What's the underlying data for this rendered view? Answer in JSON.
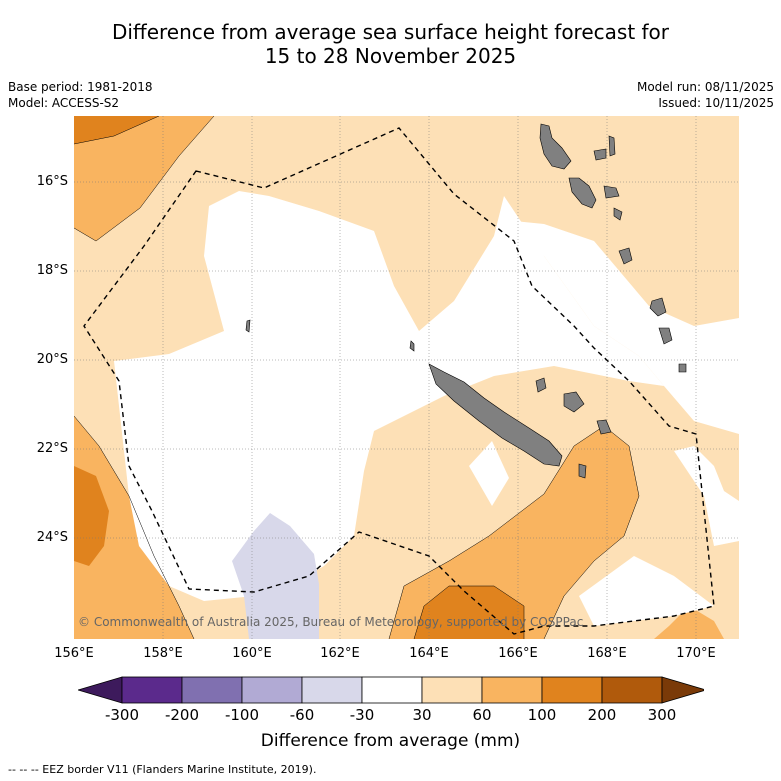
{
  "title": {
    "line1": "Difference from average sea surface height forecast for",
    "line2": "15 to 28 November 2025"
  },
  "base_period": "Base period: 1981-2018",
  "model": "Model: ACCESS-S2",
  "model_run": "Model run: 08/11/2025",
  "issued": "Issued: 10/11/2025",
  "lat_labels": [
    "16°S",
    "18°S",
    "20°S",
    "22°S",
    "24°S"
  ],
  "lon_labels": [
    "156°E",
    "158°E",
    "160°E",
    "162°E",
    "164°E",
    "166°E",
    "168°E",
    "170°E"
  ],
  "copyright": "© Commonwealth of Australia 2025, Bureau of Meteorology, supported by COSPPac",
  "colorbar": {
    "ticks": [
      "-300",
      "-200",
      "-100",
      "-60",
      "-30",
      "30",
      "60",
      "100",
      "200",
      "300"
    ],
    "colors": [
      "#3d1a5c",
      "#5b2a8c",
      "#8070b0",
      "#b1aad4",
      "#d8d8ea",
      "#ffffff",
      "#fde0b6",
      "#f9b460",
      "#e0831e",
      "#b05a0c",
      "#7a3a08"
    ],
    "title": "Difference from average (mm)"
  },
  "legend_note": "--  --  -- EEZ border V11 (Flanders Marine Institute, 2019).",
  "map_colors": {
    "land": "#808080",
    "pale": "#fde0b6",
    "light": "#f9b460",
    "medium": "#e0831e",
    "negative": "#d8d8ea"
  }
}
